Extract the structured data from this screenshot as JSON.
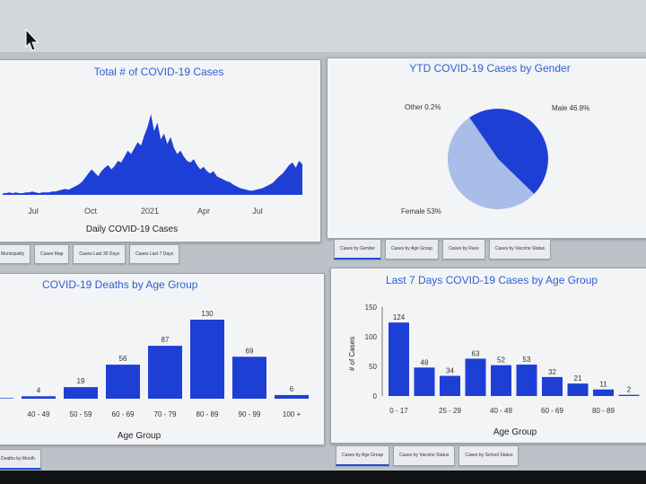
{
  "colors": {
    "accent": "#1e3fd6",
    "title": "#2b5fd9",
    "pie_light": "#a9bde8"
  },
  "panels": {
    "total": {
      "title": "Total # of COVID-19 Cases",
      "tabs": [
        "Municipality",
        "Cases Map",
        "Cases Last 30 Days",
        "Cases Last 7 Days"
      ]
    },
    "gender": {
      "title": "YTD COVID-19 Cases by Gender",
      "tabs": [
        "Cases by Gender",
        "Cases by Age Group",
        "Cases by Race",
        "Cases by Vaccine Status"
      ]
    },
    "deaths": {
      "title": "COVID-19 Deaths by Age Group",
      "tabs": [
        "Deaths by Month"
      ]
    },
    "last7": {
      "title": "Last 7 Days COVID-19 Cases by Age Group",
      "tabs": [
        "Cases by Age Group",
        "Cases by Vaccine Status",
        "Cases by School Status"
      ]
    }
  },
  "chart_data": [
    {
      "type": "area",
      "title": "",
      "xlabel": "Daily COVID-19 Cases",
      "x_ticks": [
        "Jul",
        "Oct",
        "2021",
        "Apr",
        "Jul"
      ],
      "values": [
        2,
        2,
        3,
        2,
        3,
        2,
        2,
        3,
        3,
        4,
        3,
        2,
        3,
        3,
        3,
        4,
        4,
        5,
        6,
        7,
        6,
        8,
        10,
        12,
        15,
        20,
        25,
        30,
        26,
        22,
        28,
        32,
        35,
        30,
        34,
        40,
        38,
        45,
        52,
        48,
        55,
        62,
        58,
        70,
        80,
        95,
        75,
        85,
        65,
        72,
        60,
        68,
        55,
        48,
        52,
        45,
        40,
        38,
        42,
        35,
        30,
        33,
        28,
        25,
        28,
        22,
        20,
        18,
        16,
        15,
        12,
        10,
        8,
        7,
        6,
        5,
        5,
        6,
        7,
        8,
        10,
        12,
        14,
        18,
        22,
        25,
        30,
        35,
        38,
        32,
        40,
        36
      ]
    },
    {
      "type": "pie",
      "title": "YTD COVID-19 Cases by Gender",
      "slices": [
        {
          "label": "Male 46.8%",
          "value": 46.8,
          "color": "#1e3fd6"
        },
        {
          "label": "Female 53%",
          "value": 53.0,
          "color": "#a9bde8"
        },
        {
          "label": "Other 0.2%",
          "value": 0.2,
          "color": "#6f88d6"
        }
      ]
    },
    {
      "type": "bar",
      "title": "COVID-19 Deaths by Age Group",
      "xlabel": "Age Group",
      "categories": [
        "",
        "40 - 49",
        "50 - 59",
        "60 - 69",
        "70 - 79",
        "80 - 89",
        "90 - 99",
        "100 +"
      ],
      "values": [
        1,
        4,
        19,
        56,
        87,
        130,
        69,
        6
      ],
      "ylim": [
        0,
        140
      ]
    },
    {
      "type": "bar",
      "title": "Last 7 Days COVID-19 Cases by Age Group",
      "xlabel": "Age Group",
      "ylabel": "# of Cases",
      "categories": [
        "0 - 17",
        "",
        "25 - 29",
        "",
        "40 - 49",
        "",
        "60 - 69",
        "",
        "80 - 89",
        ""
      ],
      "values": [
        124,
        48,
        34,
        63,
        52,
        53,
        32,
        21,
        11,
        2
      ],
      "y_ticks": [
        0,
        50,
        100,
        150
      ],
      "ylim": [
        0,
        150
      ]
    }
  ]
}
